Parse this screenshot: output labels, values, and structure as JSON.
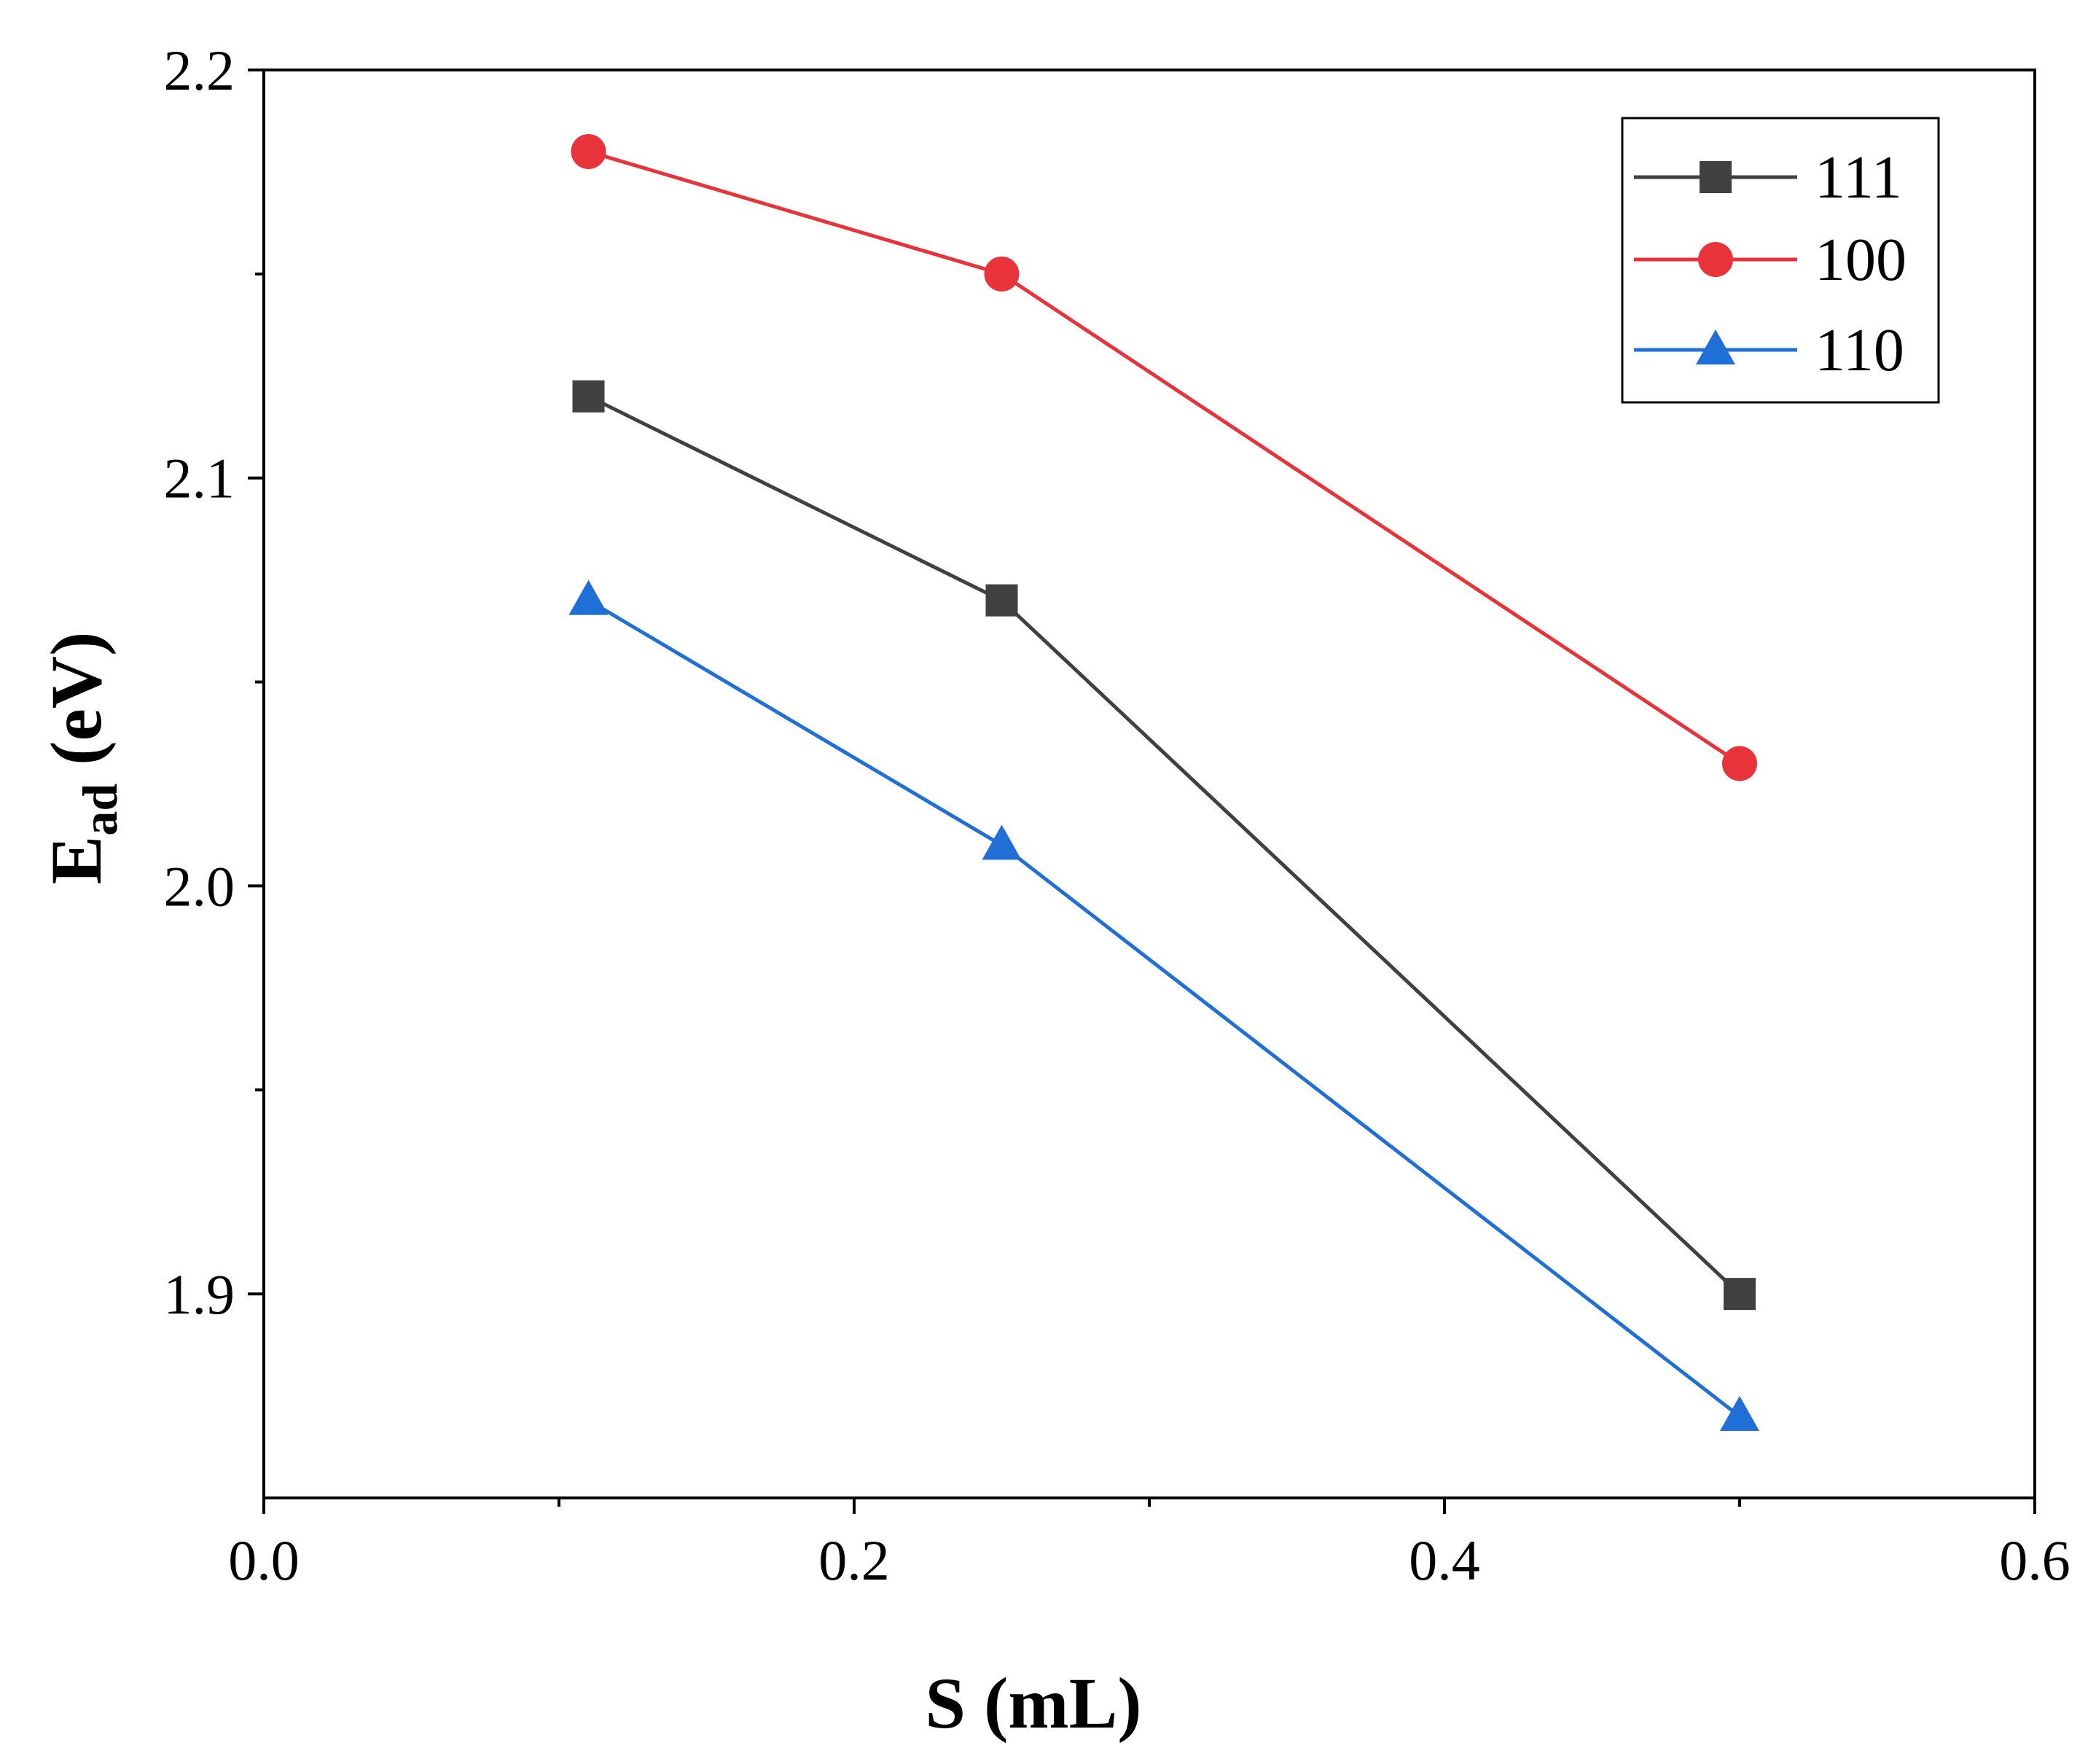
{
  "chart_data": {
    "type": "line",
    "title": "",
    "xlabel": "S (mL)",
    "ylabel_main": "E",
    "ylabel_sub": "ad",
    "ylabel_unit": " (eV)",
    "xlim": [
      0.0,
      0.6
    ],
    "ylim": [
      1.85,
      2.2
    ],
    "x_ticks": [
      "0.0",
      "0.2",
      "0.4",
      "0.6"
    ],
    "x_tick_values": [
      0.0,
      0.2,
      0.4,
      0.6
    ],
    "x_minor_ticks": [
      0.1,
      0.3,
      0.5
    ],
    "y_ticks": [
      "1.9",
      "2.0",
      "2.1",
      "2.2"
    ],
    "y_tick_values": [
      1.9,
      2.0,
      2.1,
      2.2
    ],
    "y_minor_ticks": [
      1.95,
      2.05,
      2.15
    ],
    "grid": false,
    "legend_position": "top-right",
    "series": [
      {
        "name": "111",
        "color": "#404040",
        "marker": "square",
        "x": [
          0.11,
          0.25,
          0.5
        ],
        "y": [
          2.12,
          2.07,
          1.9
        ]
      },
      {
        "name": "100",
        "color": "#e8333a",
        "marker": "circle",
        "x": [
          0.11,
          0.25,
          0.5
        ],
        "y": [
          2.18,
          2.15,
          2.03
        ]
      },
      {
        "name": "110",
        "color": "#1f6fd6",
        "marker": "triangle",
        "x": [
          0.11,
          0.25,
          0.5
        ],
        "y": [
          2.07,
          2.01,
          1.87
        ]
      }
    ]
  }
}
